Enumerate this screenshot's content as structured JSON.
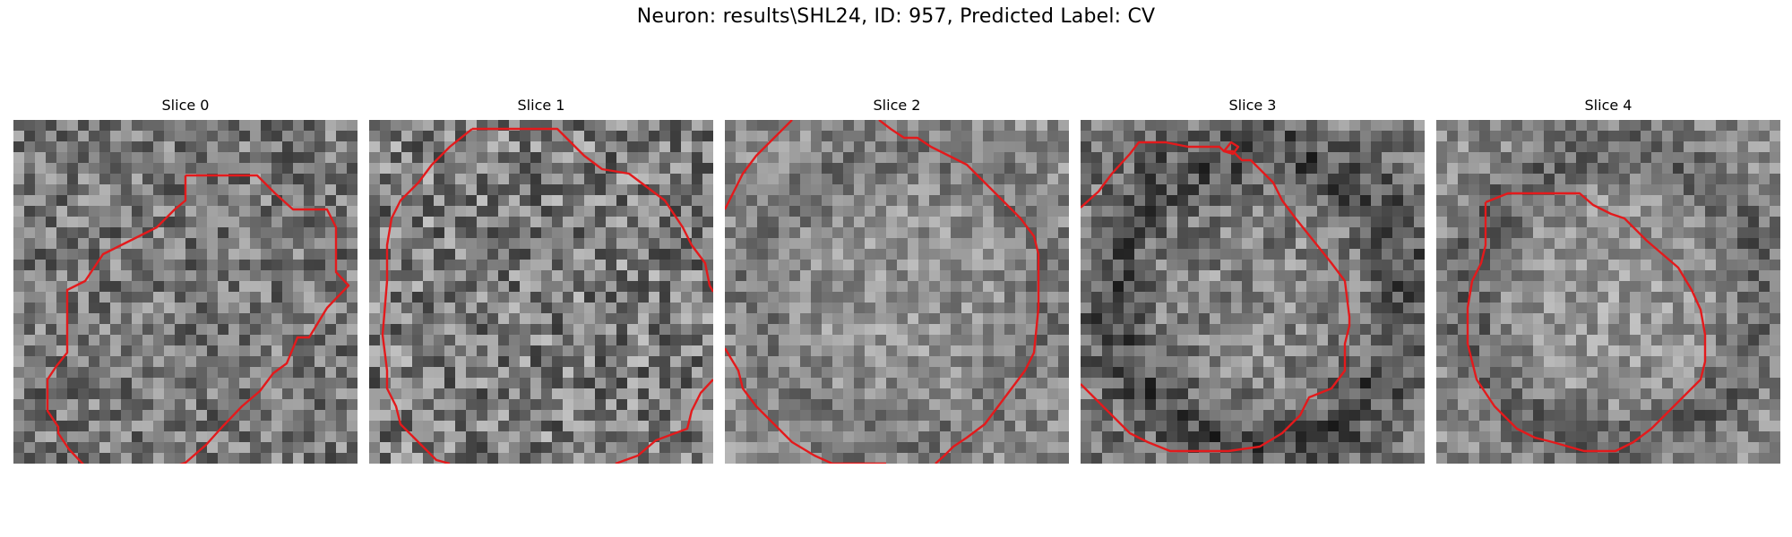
{
  "figure": {
    "title": "Neuron: results\\SHL24, ID: 957, Predicted Label: CV",
    "contour_color": "#e31a1c"
  },
  "panels": [
    {
      "title": "Slice 0"
    },
    {
      "title": "Slice 1"
    },
    {
      "title": "Slice 2"
    },
    {
      "title": "Slice 3"
    },
    {
      "title": "Slice 4"
    }
  ]
}
